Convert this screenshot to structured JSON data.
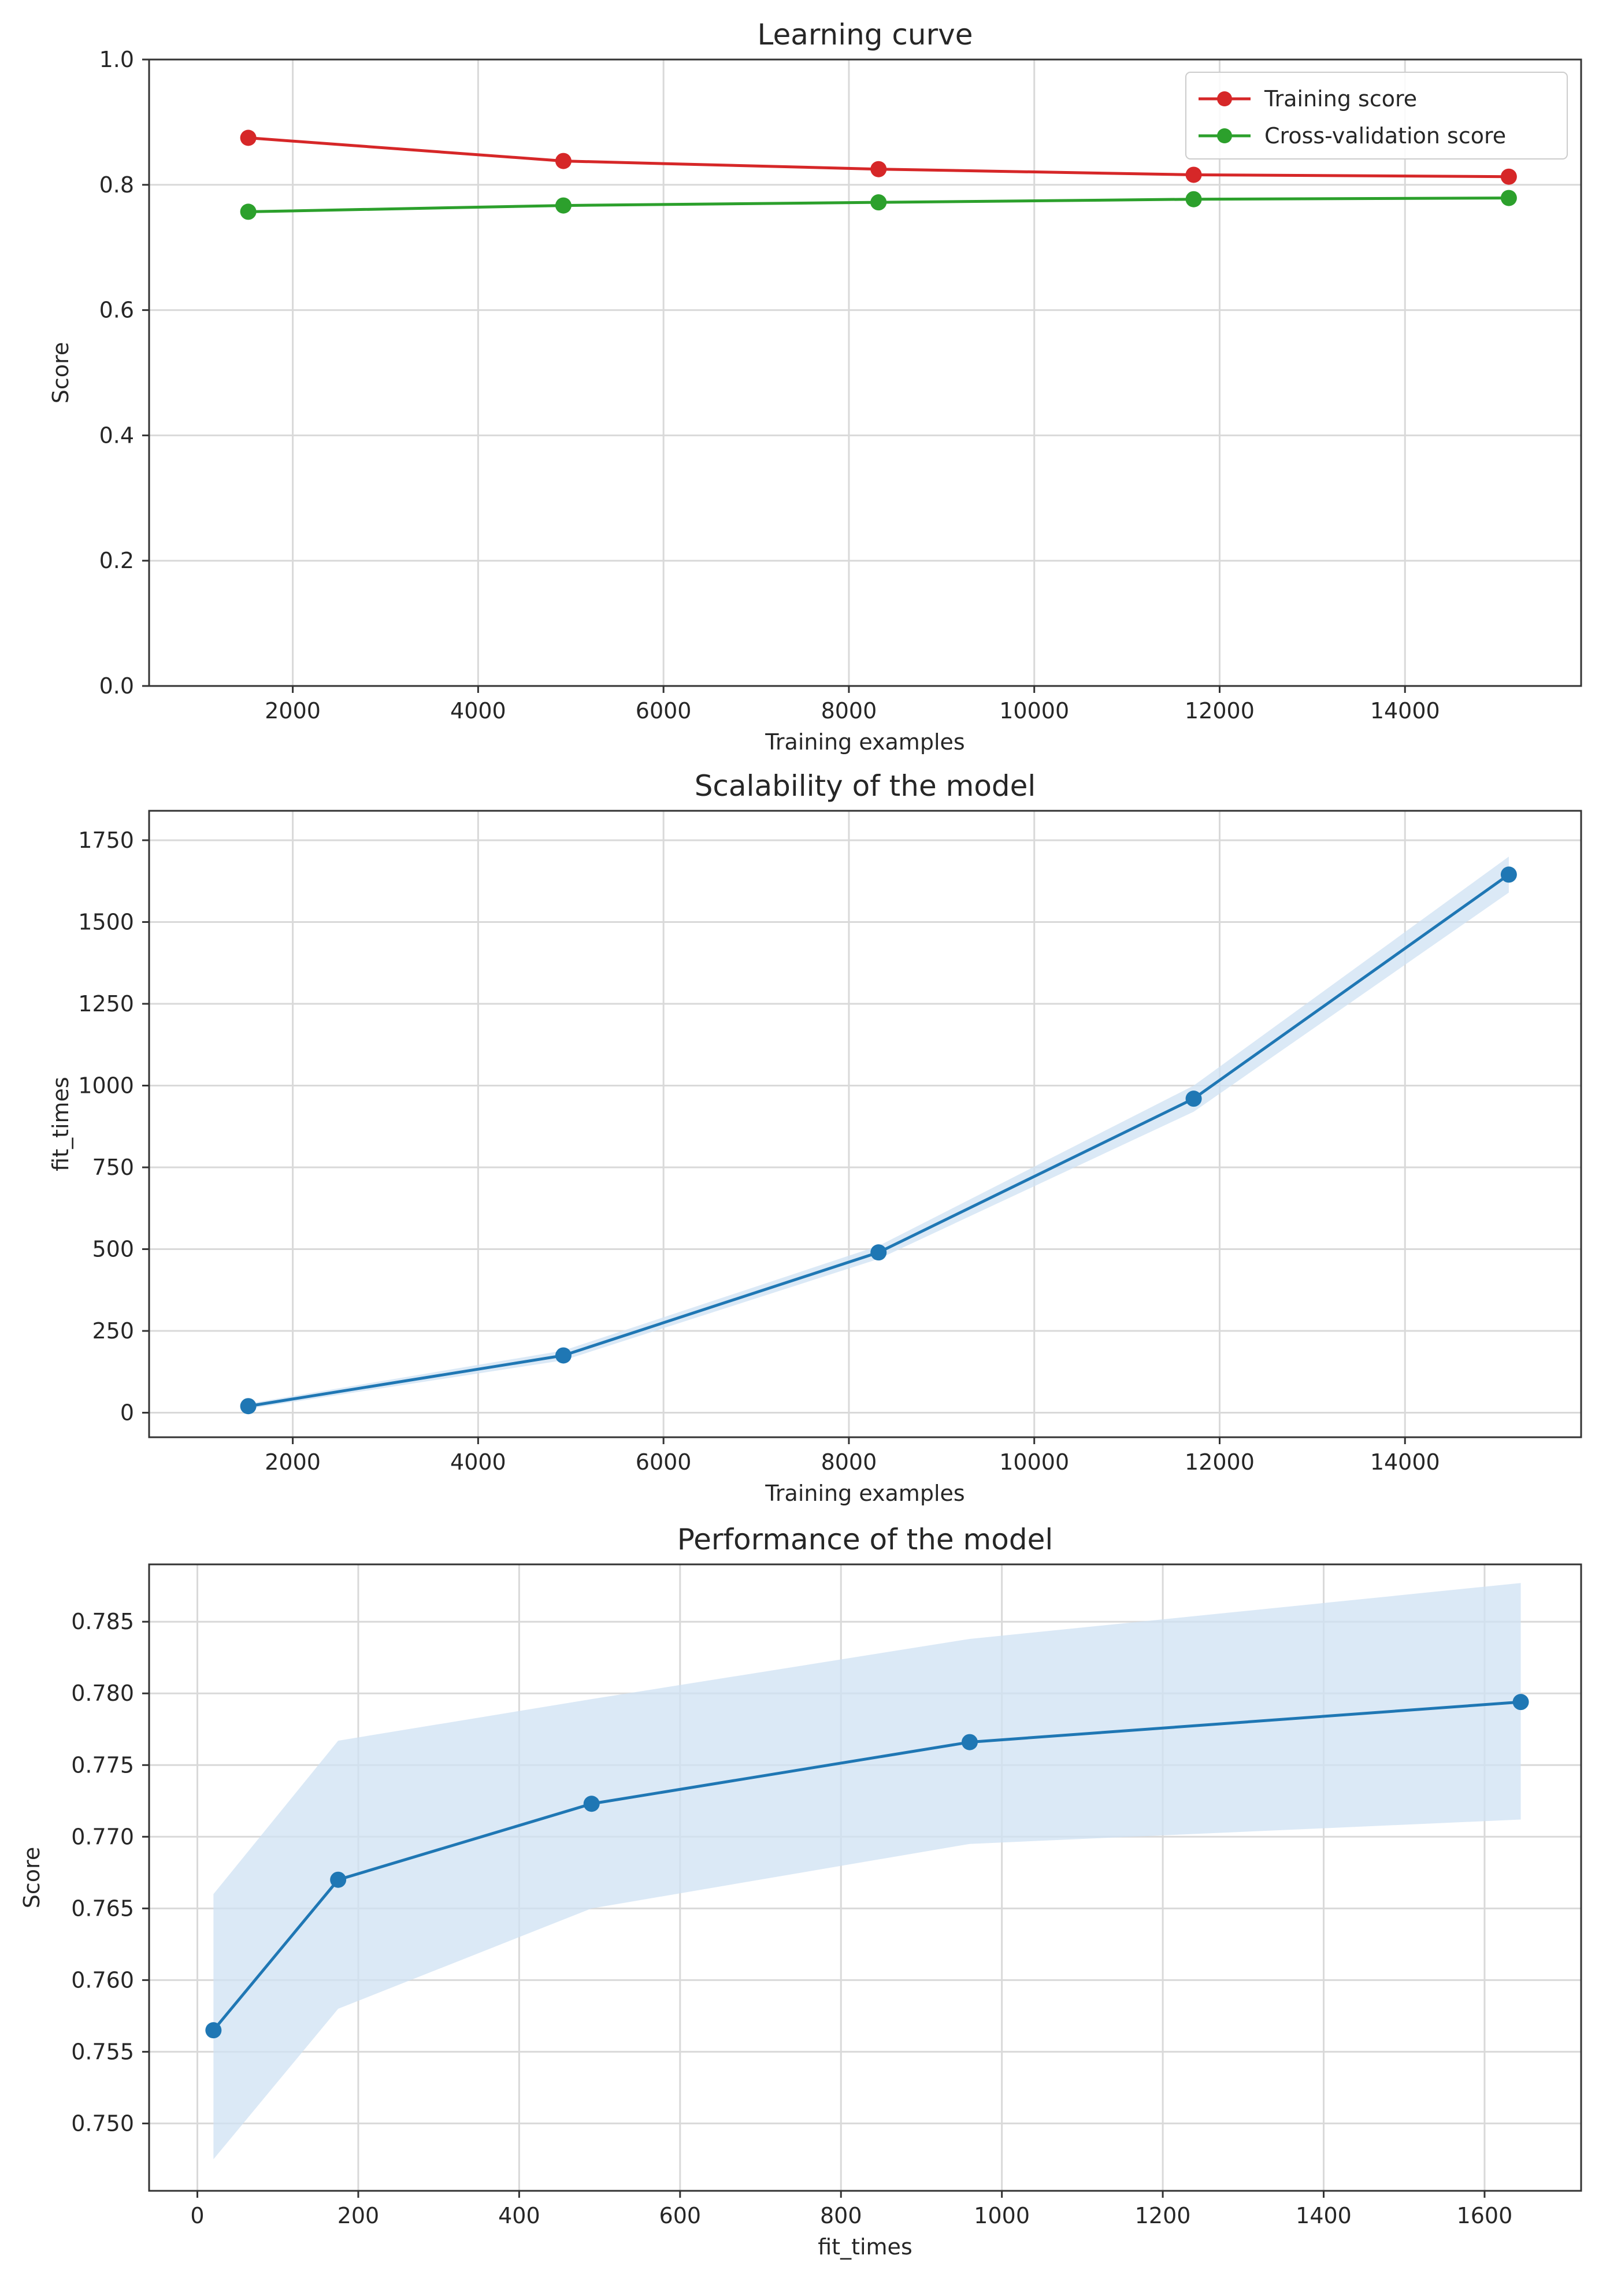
{
  "colors": {
    "training": "#d62728",
    "cv": "#2ca02c",
    "series": "#1f77b4",
    "band": "#cfe2f3",
    "grid": "#d9d9d9",
    "axes": "#333333"
  },
  "chart_data": [
    {
      "type": "line",
      "title": "Learning curve",
      "xlabel": "Training examples",
      "ylabel": "Score",
      "xlim": [
        450,
        15900
      ],
      "ylim": [
        0.0,
        1.0
      ],
      "xticks": [
        2000,
        4000,
        6000,
        8000,
        10000,
        12000,
        14000
      ],
      "xtick_labels": [
        "2000",
        "4000",
        "6000",
        "8000",
        "10000",
        "12000",
        "14000"
      ],
      "yticks": [
        0.0,
        0.2,
        0.4,
        0.6,
        0.8,
        1.0
      ],
      "ytick_labels": [
        "0.0",
        "0.2",
        "0.4",
        "0.6",
        "0.8",
        "1.0"
      ],
      "grid": true,
      "legend_placement": "top-right",
      "x": [
        1520,
        4920,
        8320,
        11720,
        15120
      ],
      "series": [
        {
          "name": "Training score",
          "color": "#d62728",
          "values": [
            0.875,
            0.838,
            0.825,
            0.816,
            0.813
          ]
        },
        {
          "name": "Cross-validation score",
          "color": "#2ca02c",
          "values": [
            0.757,
            0.767,
            0.772,
            0.777,
            0.779
          ]
        }
      ]
    },
    {
      "type": "line",
      "title": "Scalability of the model",
      "xlabel": "Training examples",
      "ylabel": "fit_times",
      "xlim": [
        450,
        15900
      ],
      "ylim": [
        -75,
        1840
      ],
      "xticks": [
        2000,
        4000,
        6000,
        8000,
        10000,
        12000,
        14000
      ],
      "xtick_labels": [
        "2000",
        "4000",
        "6000",
        "8000",
        "10000",
        "12000",
        "14000"
      ],
      "yticks": [
        0,
        250,
        500,
        750,
        1000,
        1250,
        1500,
        1750
      ],
      "ytick_labels": [
        "0",
        "250",
        "500",
        "750",
        "1000",
        "1250",
        "1500",
        "1750"
      ],
      "grid": true,
      "x": [
        1520,
        4920,
        8320,
        11720,
        15120
      ],
      "series": [
        {
          "color": "#1f77b4",
          "values": [
            20,
            175,
            490,
            960,
            1645
          ],
          "band_low": [
            12,
            160,
            470,
            920,
            1590
          ],
          "band_high": [
            28,
            190,
            510,
            1000,
            1700
          ]
        }
      ]
    },
    {
      "type": "line",
      "title": "Performance of the model",
      "xlabel": "fit_times",
      "ylabel": "Score",
      "xlim": [
        -60,
        1720
      ],
      "ylim": [
        0.7453,
        0.789
      ],
      "xticks": [
        0,
        200,
        400,
        600,
        800,
        1000,
        1200,
        1400,
        1600
      ],
      "xtick_labels": [
        "0",
        "200",
        "400",
        "600",
        "800",
        "1000",
        "1200",
        "1400",
        "1600"
      ],
      "yticks": [
        0.75,
        0.755,
        0.76,
        0.765,
        0.77,
        0.775,
        0.78,
        0.785
      ],
      "ytick_labels": [
        "0.750",
        "0.755",
        "0.760",
        "0.765",
        "0.770",
        "0.775",
        "0.780",
        "0.785"
      ],
      "grid": true,
      "x": [
        20,
        175,
        490,
        960,
        1645
      ],
      "series": [
        {
          "color": "#1f77b4",
          "values": [
            0.7565,
            0.767,
            0.7723,
            0.7766,
            0.7794
          ],
          "band_low": [
            0.7475,
            0.758,
            0.765,
            0.7695,
            0.7712
          ],
          "band_high": [
            0.766,
            0.7767,
            0.7796,
            0.7838,
            0.7877
          ]
        }
      ]
    }
  ]
}
